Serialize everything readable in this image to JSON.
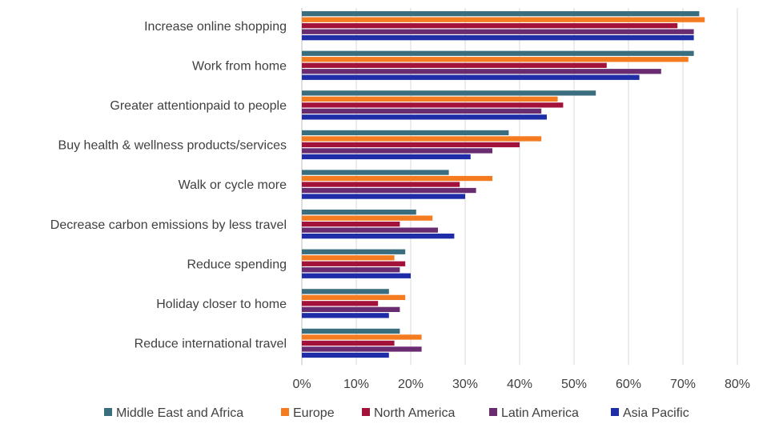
{
  "chart_data": {
    "type": "bar",
    "orientation": "horizontal",
    "title": "",
    "xlabel": "",
    "ylabel": "",
    "xlim": [
      0,
      0.8
    ],
    "x_ticks": [
      "0%",
      "10%",
      "20%",
      "30%",
      "40%",
      "50%",
      "60%",
      "70%",
      "80%"
    ],
    "grid": "vertical",
    "legend_position": "bottom",
    "categories": [
      "Increase online shopping",
      "Work from home",
      "Greater attentionpaid to people",
      "Buy health & wellness products/services",
      "Walk or cycle more",
      "Decrease carbon emissions by less travel",
      "Reduce spending",
      "Holiday closer to home",
      "Reduce international travel"
    ],
    "series": [
      {
        "name": "Middle East and Africa",
        "color": "#3a6e7f",
        "values": [
          0.73,
          0.72,
          0.54,
          0.38,
          0.27,
          0.21,
          0.19,
          0.16,
          0.18
        ]
      },
      {
        "name": "Europe",
        "color": "#f47b20",
        "values": [
          0.74,
          0.71,
          0.47,
          0.44,
          0.35,
          0.24,
          0.17,
          0.19,
          0.22
        ]
      },
      {
        "name": "North America",
        "color": "#a3123a",
        "values": [
          0.69,
          0.56,
          0.48,
          0.4,
          0.29,
          0.18,
          0.19,
          0.14,
          0.17
        ]
      },
      {
        "name": "Latin America",
        "color": "#6a2c70",
        "values": [
          0.72,
          0.66,
          0.44,
          0.35,
          0.32,
          0.25,
          0.18,
          0.18,
          0.22
        ]
      },
      {
        "name": "Asia Pacific",
        "color": "#1f2ea8",
        "values": [
          0.72,
          0.62,
          0.45,
          0.31,
          0.3,
          0.28,
          0.2,
          0.16,
          0.16
        ]
      }
    ]
  }
}
